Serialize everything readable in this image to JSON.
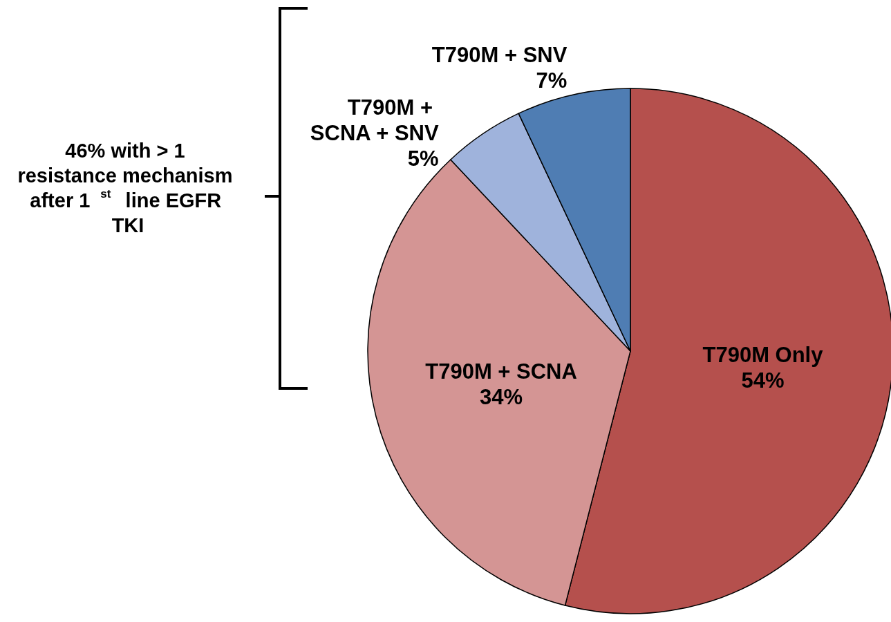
{
  "chart_data": {
    "type": "pie",
    "categories": [
      "T790M Only",
      "T790M + SCNA",
      "T790M + SCNA + SNV",
      "T790M + SNV"
    ],
    "values": [
      54,
      34,
      5,
      7
    ],
    "value_labels": [
      "54%",
      "34%",
      "5%",
      "7%"
    ],
    "colors": [
      "#b5504d",
      "#d49594",
      "#9fb3dc",
      "#4f7db3"
    ],
    "annotations": [
      "46% with > 1 resistance mechanism after 1$^{st}$ line EGFR TKI"
    ],
    "legend": false
  }
}
